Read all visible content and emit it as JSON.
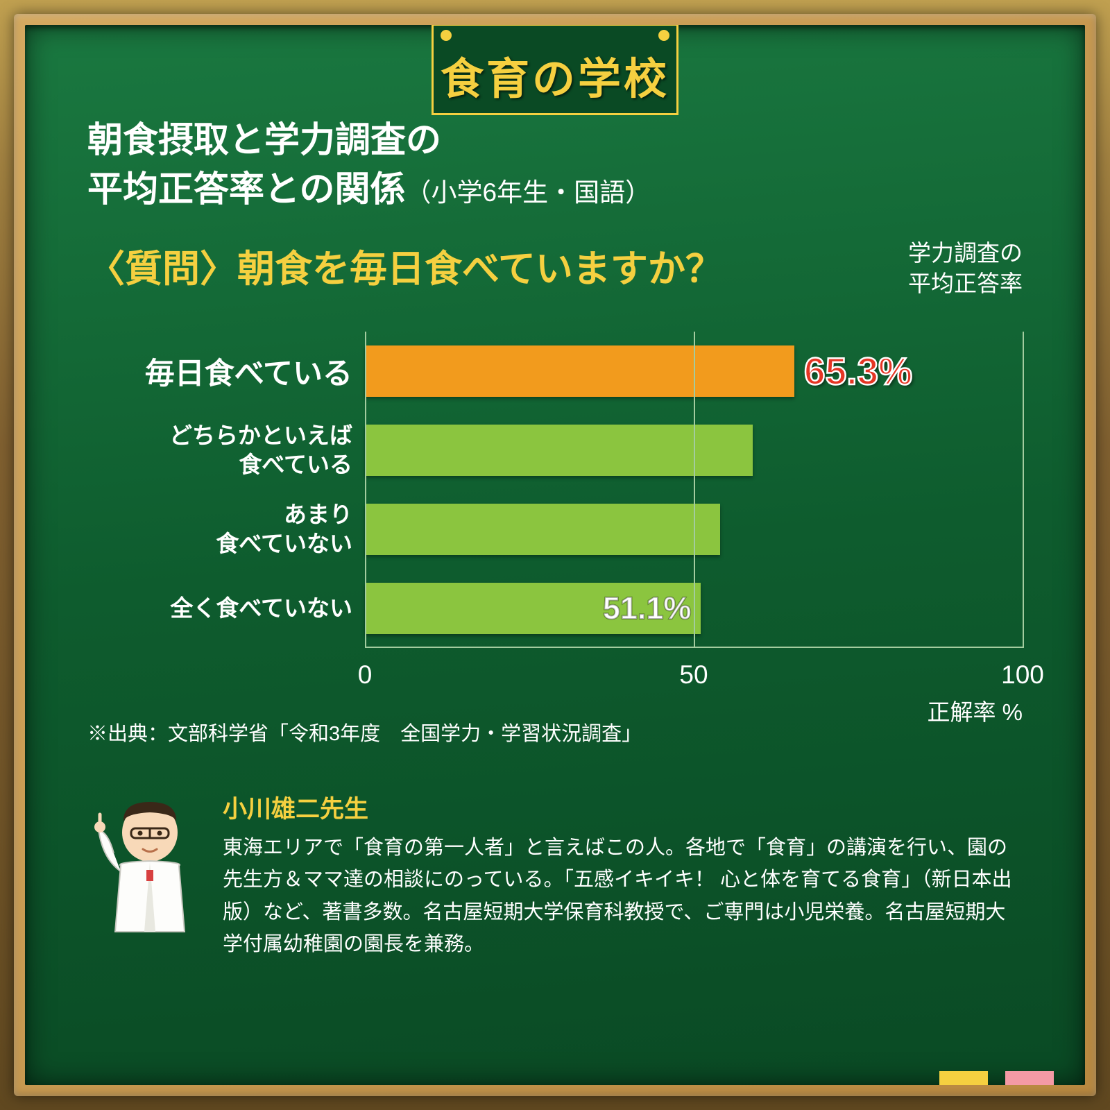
{
  "colors": {
    "frame": "#c9984d",
    "board": "#0e5c2e",
    "accent": "#f5d040",
    "white": "#ffffff",
    "bar_highlight": "#f29b1d",
    "bar_normal": "#8bc53f",
    "bar_value_hi": "#e53524",
    "grid": "#a3cc9f",
    "tab1": "#f5d040",
    "tab2": "#f49aa5"
  },
  "header": {
    "title": "食育の学校"
  },
  "subtitle": {
    "line1": "朝食摂取と学力調査の",
    "line2a": "平均正答率との関係",
    "line2b": "（小学6年生・国語）"
  },
  "question": "〈質問〉朝食を毎日食べていますか？",
  "legend_line1": "学力調査の",
  "legend_line2": "平均正答率",
  "chart": {
    "type": "bar",
    "orientation": "horizontal",
    "xlim": [
      0,
      100
    ],
    "xticks": [
      0,
      50,
      100
    ],
    "xtick_labels": [
      "0",
      "50",
      "100"
    ],
    "xaxis_label": "正解率 %",
    "bar_fontsize_hi": 43,
    "bar_fontsize_lo": 33,
    "value_fontsize": 55,
    "bars": [
      {
        "label": "毎日食べている",
        "value": 65.3,
        "display": "65.3%",
        "highlight": true,
        "two_line": false,
        "show_value": true,
        "value_outside": true
      },
      {
        "label_l1": "どちらかといえば",
        "label_l2": "食べている",
        "value": 59,
        "highlight": false,
        "two_line": true,
        "show_value": false
      },
      {
        "label_l1": "あまり",
        "label_l2": "食べていない",
        "value": 54,
        "highlight": false,
        "two_line": true,
        "show_value": false
      },
      {
        "label": "全く食べていない",
        "value": 51.1,
        "display": "51.1%",
        "highlight": false,
        "two_line": false,
        "show_value": true,
        "value_outside": false
      }
    ]
  },
  "source": "※出典：文部科学省「令和3年度　全国学力・学習状況調査」",
  "bio": {
    "name": "小川雄二先生",
    "desc": "東海エリアで「食育の第一人者」と言えばこの人。各地で「食育」の講演を行い、園の先生方＆ママ達の相談にのっている。「五感イキイキ！ 心と体を育てる食育」（新日本出版）など、著書多数。名古屋短期大学保育科教授で、ご専門は小児栄養。名古屋短期大学付属幼稚園の園長を兼務。"
  }
}
